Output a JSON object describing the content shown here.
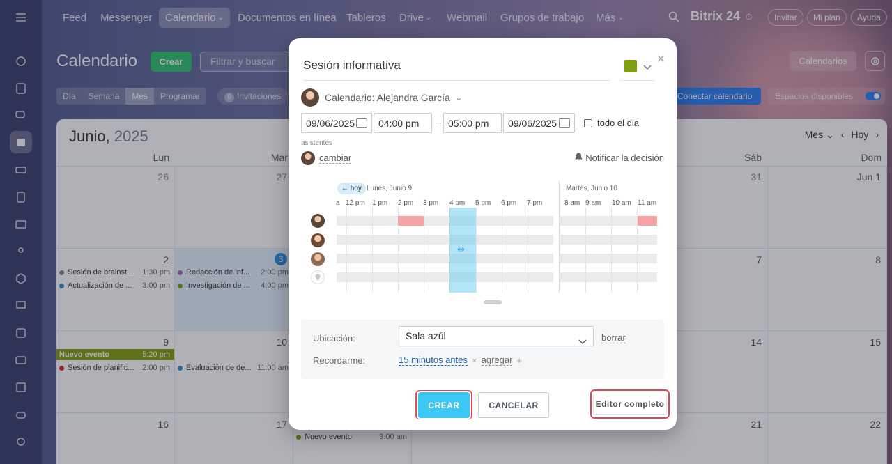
{
  "topbar": {
    "nav": [
      "Feed",
      "Messenger",
      "Calendario",
      "Documentos en línea",
      "Tableros",
      "Drive",
      "Webmail",
      "Grupos de trabajo",
      "Más"
    ],
    "brand": "Bitrix 24",
    "invitar": "Invitar",
    "mi_plan": "Mi plan",
    "ayuda": "Ayuda"
  },
  "page": {
    "title": "Calendario",
    "create_label": "Crear",
    "filter_placeholder": "Filtrar y buscar",
    "view_tabs": [
      "Día",
      "Semana",
      "Mes",
      "Programar"
    ],
    "invites_count": "0",
    "invites_label": "Invitaciones",
    "calendars_label": "Calendarios",
    "connect_label": "Conectar calendario",
    "spaces_label": "Espacios disponibles"
  },
  "calendar": {
    "month": "Junio,",
    "year": "2025",
    "view_select": "Mes",
    "today_label": "Hoy",
    "days": [
      "Lun",
      "Mar",
      "",
      "",
      "",
      "Sáb",
      "Dom"
    ],
    "week1": [
      "26",
      "27",
      "",
      "",
      "",
      "31",
      "Jun 1"
    ],
    "week2": [
      "2",
      "3",
      "",
      "",
      "",
      "7",
      "8"
    ],
    "week3": [
      "9",
      "10",
      "",
      "",
      "",
      "14",
      "15"
    ],
    "week4": [
      "16",
      "17",
      "",
      "",
      "",
      "21",
      "22"
    ],
    "events": {
      "mon2_a": {
        "title": "Sesión de brainst...",
        "time": "1:30 pm",
        "color": "#7a8a99"
      },
      "mon2_b": {
        "title": "Actualización de ...",
        "time": "3:00 pm",
        "color": "#2a8ed6"
      },
      "tue3_a": {
        "title": "Redacción de inf...",
        "time": "2:00 pm",
        "color": "#a764b0"
      },
      "tue3_b": {
        "title": "Investigación de ...",
        "time": "4:00 pm",
        "color": "#7ea010"
      },
      "mon9_banner": {
        "title": "Nuevo evento",
        "time": "5:20 pm",
        "color": "#7ea010"
      },
      "mon9_a": {
        "title": "Sesión de planific...",
        "time": "2:00 pm",
        "color": "#d52a2a"
      },
      "tue10_a": {
        "title": "Evaluación de de...",
        "time": "11:00 am",
        "color": "#2a8ed6"
      },
      "wed_nuevo": {
        "title": "Nuevo evento",
        "time": "9:00 am",
        "color": "#7ea010"
      }
    }
  },
  "popup": {
    "event_title": "Sesión informativa",
    "color": "#7ea010",
    "calendar_label": "Calendario: Alejandra García",
    "date_from": "09/06/2025",
    "time_from": "04:00 pm",
    "time_to": "05:00 pm",
    "date_to": "09/06/2025",
    "all_day": "todo el dia",
    "attendees_label": "asistentes",
    "change_label": "cambiar",
    "notify_label": "Notificar la decisión",
    "planner": {
      "today_pill": "← hoy",
      "day1": "Lunes, Junio 9",
      "day2": "Martes, Junio 10",
      "hours1": [
        "12 pm",
        "1 pm",
        "2 pm",
        "3 pm",
        "4 pm",
        "5 pm",
        "6 pm",
        "7 pm"
      ],
      "hours2": [
        "8 am",
        "9 am",
        "10 am",
        "11 am"
      ],
      "lead_hour": "a"
    },
    "location_label": "Ubicación:",
    "location_value": "Sala azúl",
    "clear_label": "borrar",
    "remind_label": "Recordarme:",
    "remind_value": "15 minutos antes",
    "add_label": "agregar",
    "create_btn": "CREAR",
    "cancel_btn": "CANCELAR",
    "editor_btn": "Editor completo"
  }
}
